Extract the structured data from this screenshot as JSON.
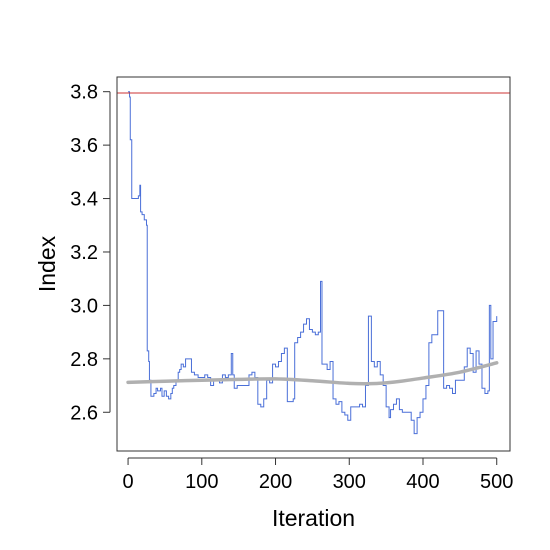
{
  "chart_data": {
    "type": "line",
    "title": "",
    "xlabel": "Iteration",
    "ylabel": "Index",
    "xlim": [
      -15,
      518
    ],
    "ylim": [
      2.455,
      3.855
    ],
    "x_ticks": [
      0,
      100,
      200,
      300,
      400,
      500
    ],
    "y_ticks": [
      2.6,
      2.8,
      3.0,
      3.2,
      3.4,
      3.6,
      3.8
    ],
    "reference_line": {
      "y": 3.795,
      "color": "#cc3333"
    },
    "series": [
      {
        "color": "#4a6fd8",
        "style": "step",
        "x": [
          0,
          2,
          3,
          5,
          7,
          14,
          16,
          17,
          19,
          22,
          25,
          26,
          28,
          29,
          31,
          35,
          38,
          40,
          44,
          46,
          49,
          52,
          55,
          58,
          60,
          62,
          65,
          68,
          70,
          72,
          75,
          78,
          82,
          86,
          90,
          95,
          100,
          104,
          108,
          112,
          116,
          120,
          124,
          128,
          132,
          136,
          140,
          142,
          144,
          148,
          152,
          156,
          160,
          164,
          168,
          172,
          176,
          180,
          184,
          188,
          192,
          196,
          200,
          204,
          208,
          212,
          216,
          220,
          224,
          226,
          230,
          234,
          238,
          242,
          246,
          250,
          254,
          258,
          261,
          263,
          266,
          270,
          274,
          278,
          282,
          286,
          290,
          294,
          298,
          302,
          306,
          310,
          314,
          318,
          322,
          326,
          330,
          334,
          338,
          342,
          346,
          350,
          354,
          356,
          360,
          364,
          368,
          372,
          376,
          380,
          384,
          388,
          392,
          396,
          400,
          404,
          408,
          412,
          416,
          420,
          424,
          428,
          432,
          436,
          440,
          444,
          448,
          452,
          456,
          460,
          464,
          468,
          472,
          476,
          480,
          484,
          488,
          490,
          492,
          495,
          500
        ],
        "y": [
          3.8,
          3.78,
          3.62,
          3.4,
          3.4,
          3.41,
          3.45,
          3.35,
          3.34,
          3.32,
          3.3,
          2.83,
          2.79,
          2.72,
          2.66,
          2.67,
          2.69,
          2.68,
          2.69,
          2.66,
          2.68,
          2.66,
          2.65,
          2.67,
          2.69,
          2.7,
          2.72,
          2.75,
          2.76,
          2.78,
          2.77,
          2.8,
          2.8,
          2.75,
          2.74,
          2.73,
          2.73,
          2.74,
          2.73,
          2.7,
          2.72,
          2.72,
          2.71,
          2.74,
          2.73,
          2.74,
          2.82,
          2.74,
          2.69,
          2.7,
          2.7,
          2.7,
          2.7,
          2.74,
          2.75,
          2.73,
          2.63,
          2.62,
          2.65,
          2.72,
          2.71,
          2.78,
          2.77,
          2.79,
          2.82,
          2.84,
          2.64,
          2.64,
          2.65,
          2.86,
          2.88,
          2.9,
          2.93,
          2.95,
          2.91,
          2.9,
          2.89,
          2.9,
          3.09,
          2.78,
          2.78,
          2.76,
          2.79,
          2.65,
          2.63,
          2.64,
          2.6,
          2.59,
          2.57,
          2.62,
          2.62,
          2.62,
          2.63,
          2.62,
          2.7,
          2.96,
          2.79,
          2.77,
          2.79,
          2.74,
          2.7,
          2.62,
          2.58,
          2.61,
          2.63,
          2.65,
          2.61,
          2.6,
          2.6,
          2.6,
          2.57,
          2.52,
          2.58,
          2.6,
          2.65,
          2.7,
          2.86,
          2.89,
          2.89,
          2.98,
          2.98,
          2.69,
          2.7,
          2.69,
          2.67,
          2.72,
          2.72,
          2.72,
          2.77,
          2.84,
          2.82,
          2.75,
          2.83,
          2.78,
          2.69,
          2.67,
          2.68,
          3.0,
          2.8,
          2.94,
          2.96
        ]
      },
      {
        "color": "#b0b0b0",
        "style": "smooth",
        "x": [
          0,
          50,
          100,
          150,
          200,
          250,
          300,
          330,
          360,
          400,
          450,
          500
        ],
        "y": [
          2.712,
          2.716,
          2.72,
          2.723,
          2.725,
          2.718,
          2.708,
          2.707,
          2.713,
          2.728,
          2.75,
          2.785
        ]
      }
    ]
  }
}
